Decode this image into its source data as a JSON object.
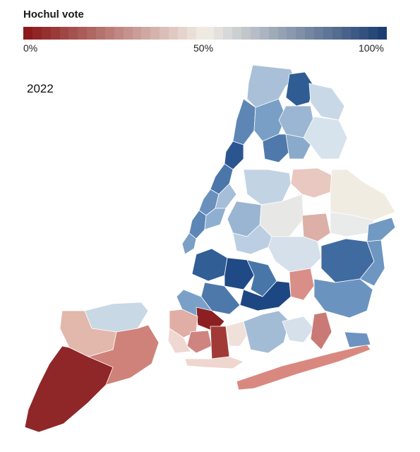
{
  "legend": {
    "title": "Hochul vote",
    "tick_min": "0%",
    "tick_mid": "50%",
    "tick_max": "100%",
    "low_color": "#8b1a1a",
    "mid_color": "#f2efe6",
    "high_color": "#1c3f73"
  },
  "year_label": "2022"
}
